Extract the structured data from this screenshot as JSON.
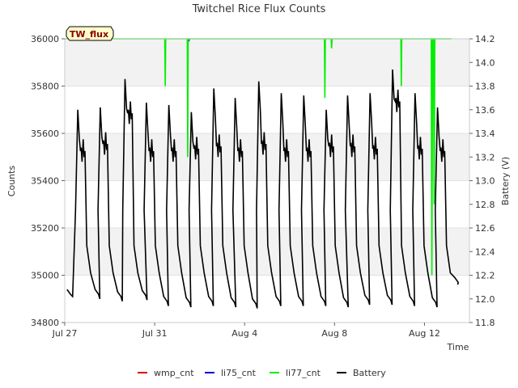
{
  "chart_data": {
    "type": "line",
    "title": "Twitchel Rice Flux Counts",
    "xlabel": "Time",
    "ylabel_left": "Counts",
    "ylabel_right": "Battery (V)",
    "site_label": "TW_flux",
    "x_ticks": [
      "Jul 27",
      "Jul 31",
      "Aug 4",
      "Aug 8",
      "Aug 12"
    ],
    "x_tick_days": [
      0,
      4,
      8,
      12,
      16
    ],
    "x_range_days": [
      0,
      18
    ],
    "y_left": {
      "range": [
        34800,
        36000
      ],
      "ticks": [
        34800,
        35000,
        35200,
        35400,
        35600,
        35800,
        36000
      ]
    },
    "y_right": {
      "range": [
        11.8,
        14.2
      ],
      "ticks": [
        "11.8",
        "12.0",
        "12.2",
        "12.4",
        "12.6",
        "12.8",
        "13.0",
        "13.2",
        "13.4",
        "13.6",
        "13.8",
        "14.0",
        "14.2"
      ]
    },
    "grid": true,
    "legend_position": "bottom-center",
    "series": [
      {
        "name": "wmp_cnt",
        "color": "#dd0000",
        "axis": "left",
        "points": []
      },
      {
        "name": "li75_cnt",
        "color": "#0000cc",
        "axis": "left",
        "points": [
          [
            5.5,
            36000
          ],
          [
            5.52,
            35990
          ],
          [
            5.54,
            36000
          ]
        ]
      },
      {
        "name": "li77_cnt",
        "color": "#00ee00",
        "axis": "left",
        "points": [
          [
            0.0,
            36000
          ],
          [
            4.45,
            36000
          ],
          [
            4.47,
            35800
          ],
          [
            4.49,
            36000
          ],
          [
            5.45,
            36000
          ],
          [
            5.47,
            35500
          ],
          [
            5.49,
            36000
          ],
          [
            11.55,
            36000
          ],
          [
            11.57,
            35750
          ],
          [
            11.59,
            36000
          ],
          [
            11.85,
            36000
          ],
          [
            11.87,
            35960
          ],
          [
            11.89,
            36000
          ],
          [
            14.95,
            36000
          ],
          [
            14.97,
            35800
          ],
          [
            14.99,
            36000
          ],
          [
            16.3,
            36000
          ],
          [
            16.33,
            35000
          ],
          [
            16.36,
            36000
          ],
          [
            16.4,
            36000
          ],
          [
            16.43,
            35300
          ],
          [
            16.46,
            36000
          ],
          [
            17.2,
            36000
          ]
        ]
      },
      {
        "name": "Battery",
        "color": "#000000",
        "axis": "right",
        "peaks": [
          [
            0.6,
            13.6,
            13.2
          ],
          [
            1.6,
            13.62,
            13.26
          ],
          [
            2.7,
            13.86,
            13.52
          ],
          [
            3.65,
            13.66,
            13.2
          ],
          [
            4.65,
            13.64,
            13.2
          ],
          [
            5.65,
            13.58,
            13.22
          ],
          [
            6.65,
            13.78,
            13.24
          ],
          [
            7.6,
            13.7,
            13.2
          ],
          [
            8.65,
            13.84,
            13.26
          ],
          [
            9.65,
            13.74,
            13.2
          ],
          [
            10.65,
            13.72,
            13.2
          ],
          [
            11.65,
            13.6,
            13.24
          ],
          [
            12.6,
            13.72,
            13.24
          ],
          [
            13.6,
            13.74,
            13.22
          ],
          [
            14.6,
            13.94,
            13.62
          ],
          [
            15.6,
            13.74,
            13.22
          ],
          [
            16.6,
            13.62,
            13.2
          ]
        ],
        "mins": [
          12.02,
          12.0,
          11.98,
          11.99,
          11.94,
          11.93,
          11.94,
          11.93,
          11.92,
          11.94,
          11.94,
          11.94,
          11.93,
          11.95,
          11.95,
          11.94,
          11.93,
          12.1
        ]
      }
    ]
  }
}
